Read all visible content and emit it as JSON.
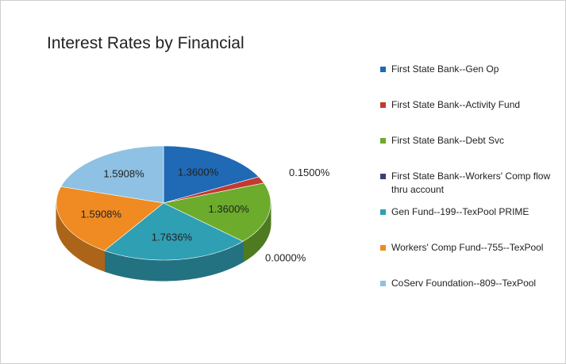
{
  "chart_data": {
    "type": "pie",
    "title": "Interest Rates by Financial",
    "categories": [
      "First State Bank--Gen Op",
      "First State Bank--Activity Fund",
      "First State Bank--Debt Svc",
      "First State Bank--Workers' Comp flow thru account",
      "Gen Fund--199--TexPool PRIME",
      "Workers' Comp Fund--755--TexPool",
      "CoServ Foundation--809--TexPool"
    ],
    "values": [
      1.36,
      0.15,
      1.36,
      0.0,
      1.7636,
      1.5908,
      1.5908
    ],
    "value_labels": [
      "1.3600%",
      "0.1500%",
      "1.3600%",
      "0.0000%",
      "1.7636%",
      "1.5908%",
      "1.5908%"
    ],
    "colors": [
      "#1f69b5",
      "#c23a2e",
      "#6cab2c",
      "#3b3f7d",
      "#2f9fb3",
      "#ef8b22",
      "#8ec1e3"
    ],
    "legend": "right"
  }
}
